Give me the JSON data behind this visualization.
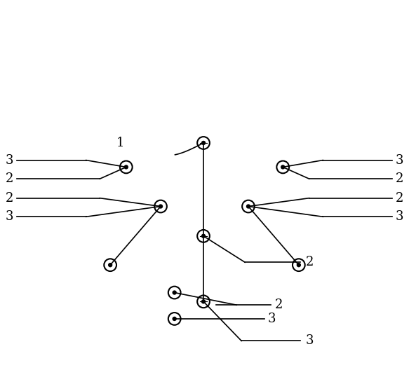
{
  "background_color": "#ffffff",
  "line_color": "#000000",
  "figsize": [
    5.83,
    5.28
  ],
  "dpi": 100,
  "lw": 1.2,
  "circle_r": 0.018,
  "dot_r": 0.005,
  "fontsize": 13
}
